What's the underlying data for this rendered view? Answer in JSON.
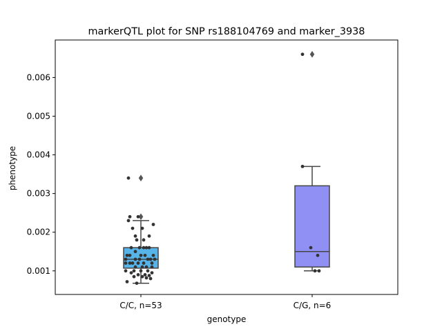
{
  "chart_data": {
    "type": "box",
    "title": "markerQTL plot for SNP rs188104769 and marker_3938",
    "xlabel": "genotype",
    "ylabel": "phenotype",
    "ylim": [
      0.00039,
      0.00697
    ],
    "yticks": [
      "0.001",
      "0.002",
      "0.003",
      "0.004",
      "0.005",
      "0.006"
    ],
    "ytick_values": [
      0.001,
      0.002,
      0.003,
      0.004,
      0.005,
      0.006
    ],
    "categories": [
      "C/C, n=53",
      "C/G, n=6"
    ],
    "boxes": [
      {
        "category": "C/C, n=53",
        "color": "#56b4e9",
        "q1": 0.00107,
        "median": 0.0013,
        "q3": 0.0016,
        "whisker_low": 0.00068,
        "whisker_high": 0.0023,
        "outliers": [
          0.0024,
          0.0034
        ],
        "points": [
          [
            -0.09,
            0.0034
          ],
          [
            -0.02,
            0.0024
          ],
          [
            -0.08,
            0.0024
          ],
          [
            -0.09,
            0.0023
          ],
          [
            0.09,
            0.0022
          ],
          [
            -0.06,
            0.0021
          ],
          [
            0.01,
            0.0021
          ],
          [
            -0.04,
            0.0019
          ],
          [
            0.06,
            0.0019
          ],
          [
            -0.03,
            0.0018
          ],
          [
            0.02,
            0.0018
          ],
          [
            -0.01,
            0.0016
          ],
          [
            0.04,
            0.0016
          ],
          [
            0.06,
            0.0016
          ],
          [
            -0.07,
            0.0016
          ],
          [
            0.02,
            0.0016
          ],
          [
            -0.04,
            0.0015
          ],
          [
            0.09,
            0.0014
          ],
          [
            -0.1,
            0.0014
          ],
          [
            -0.08,
            0.0014
          ],
          [
            0.0,
            0.0014
          ],
          [
            0.03,
            0.0014
          ],
          [
            -0.11,
            0.0013
          ],
          [
            0.05,
            0.0013
          ],
          [
            0.07,
            0.0013
          ],
          [
            -0.04,
            0.0013
          ],
          [
            -0.01,
            0.0013
          ],
          [
            0.1,
            0.0013
          ],
          [
            -0.11,
            0.0012
          ],
          [
            -0.08,
            0.0012
          ],
          [
            -0.02,
            0.0012
          ],
          [
            0.02,
            0.0012
          ],
          [
            0.08,
            0.0012
          ],
          [
            -0.06,
            0.0012
          ],
          [
            0.04,
            0.0011
          ],
          [
            -0.04,
            0.0011
          ],
          [
            0.01,
            0.0011
          ],
          [
            0.08,
            0.0011
          ],
          [
            -0.11,
            0.001
          ],
          [
            -0.05,
            0.001
          ],
          [
            0.0,
            0.001
          ],
          [
            0.05,
            0.001
          ],
          [
            0.08,
            0.00095
          ],
          [
            -0.07,
            0.00095
          ],
          [
            0.03,
            0.0009
          ],
          [
            -0.02,
            0.0009
          ],
          [
            0.06,
            0.00088
          ],
          [
            -0.05,
            0.00085
          ],
          [
            0.01,
            0.00085
          ],
          [
            0.04,
            0.00082
          ],
          [
            -0.1,
            0.00072
          ],
          [
            -0.03,
            0.00068
          ],
          [
            0.07,
            0.0008
          ]
        ]
      },
      {
        "category": "C/G, n=6",
        "color": "#9090f4",
        "q1": 0.0011,
        "median": 0.0015,
        "q3": 0.0032,
        "whisker_low": 0.001,
        "whisker_high": 0.0037,
        "outliers": [
          0.0066
        ],
        "points": [
          [
            -0.07,
            0.0066
          ],
          [
            -0.07,
            0.0037
          ],
          [
            -0.01,
            0.0016
          ],
          [
            0.04,
            0.0014
          ],
          [
            0.02,
            0.001
          ],
          [
            0.05,
            0.001
          ]
        ]
      }
    ]
  }
}
